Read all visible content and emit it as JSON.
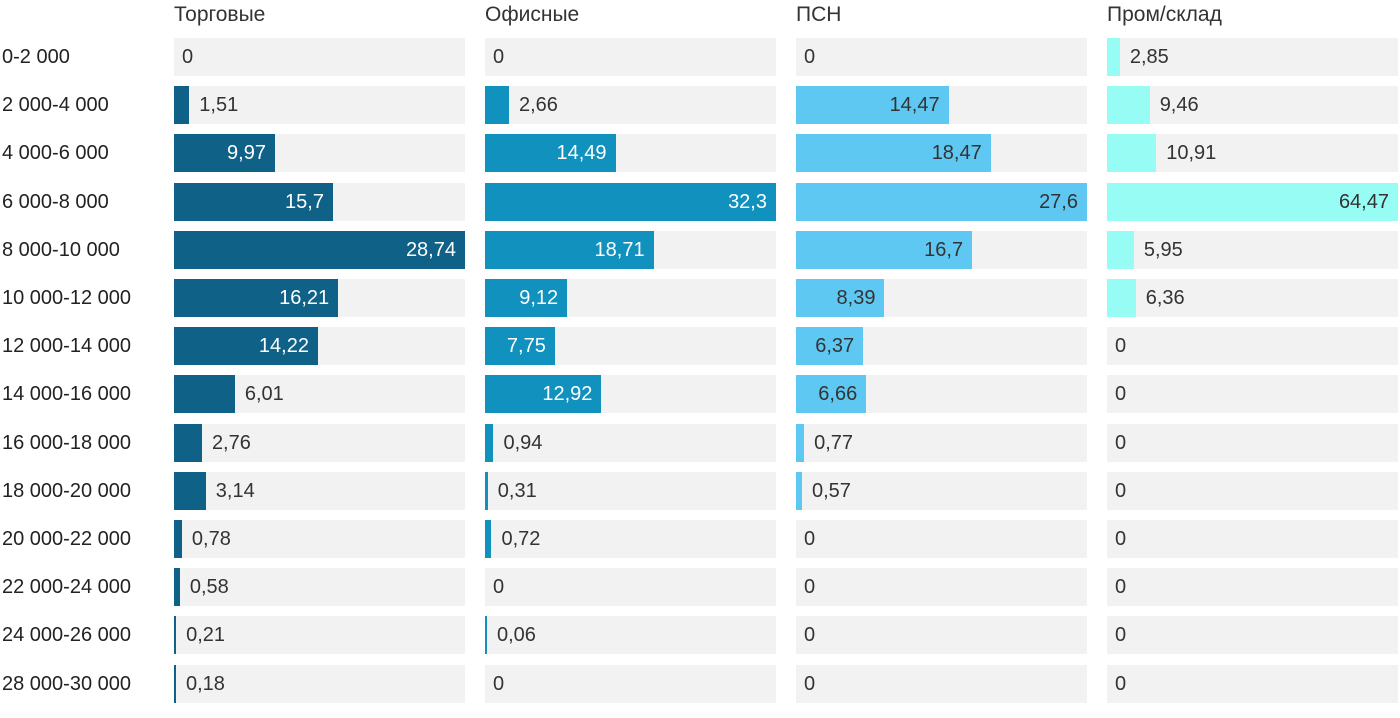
{
  "chart_data": {
    "type": "bar",
    "orientation": "horizontal",
    "title": "",
    "xlabel": "",
    "ylabel": "",
    "grid": false,
    "legend_position": "column-headers-top",
    "scaling": "each column scaled independently so its max value fills the full track width",
    "track_color": "#f2f2f2",
    "categories": [
      "0-2 000",
      "2 000-4 000",
      "4 000-6 000",
      "6 000-8 000",
      "8 000-10 000",
      "10 000-12 000",
      "12 000-14 000",
      "14 000-16 000",
      "16 000-18 000",
      "18 000-20 000",
      "20 000-22 000",
      "22 000-24 000",
      "24 000-26 000",
      "28 000-30 000"
    ],
    "series": [
      {
        "name": "Торговые",
        "color": "#0f6187",
        "value_color_inside": "#ffffff",
        "value_color_outside": "#333333",
        "values": [
          0,
          1.51,
          9.97,
          15.7,
          28.74,
          16.21,
          14.22,
          6.01,
          2.76,
          3.14,
          0.78,
          0.58,
          0.21,
          0.18
        ],
        "labels": [
          "0",
          "1,51",
          "9,97",
          "15,7",
          "28,74",
          "16,21",
          "14,22",
          "6,01",
          "2,76",
          "3,14",
          "0,78",
          "0,58",
          "0,21",
          "0,18"
        ]
      },
      {
        "name": "Офисные",
        "color": "#1191bd",
        "value_color_inside": "#ffffff",
        "value_color_outside": "#333333",
        "values": [
          0,
          2.66,
          14.49,
          32.3,
          18.71,
          9.12,
          7.75,
          12.92,
          0.94,
          0.31,
          0.72,
          0,
          0.06,
          0
        ],
        "labels": [
          "0",
          "2,66",
          "14,49",
          "32,3",
          "18,71",
          "9,12",
          "7,75",
          "12,92",
          "0,94",
          "0,31",
          "0,72",
          "0",
          "0,06",
          "0"
        ]
      },
      {
        "name": "ПСН",
        "color": "#5ec8f2",
        "value_color_inside": "#333333",
        "value_color_outside": "#333333",
        "values": [
          0,
          14.47,
          18.47,
          27.6,
          16.7,
          8.39,
          6.37,
          6.66,
          0.77,
          0.57,
          0,
          0,
          0,
          0
        ],
        "labels": [
          "0",
          "14,47",
          "18,47",
          "27,6",
          "16,7",
          "8,39",
          "6,37",
          "6,66",
          "0,77",
          "0,57",
          "0",
          "0",
          "0",
          "0"
        ]
      },
      {
        "name": "Пром/склад",
        "color": "#97fcf4",
        "value_color_inside": "#333333",
        "value_color_outside": "#333333",
        "values": [
          2.85,
          9.46,
          10.91,
          64.47,
          5.95,
          6.36,
          0,
          0,
          0,
          0,
          0,
          0,
          0,
          0
        ],
        "labels": [
          "2,85",
          "9,46",
          "10,91",
          "64,47",
          "5,95",
          "6,36",
          "0",
          "0",
          "0",
          "0",
          "0",
          "0",
          "0",
          "0"
        ]
      }
    ]
  }
}
